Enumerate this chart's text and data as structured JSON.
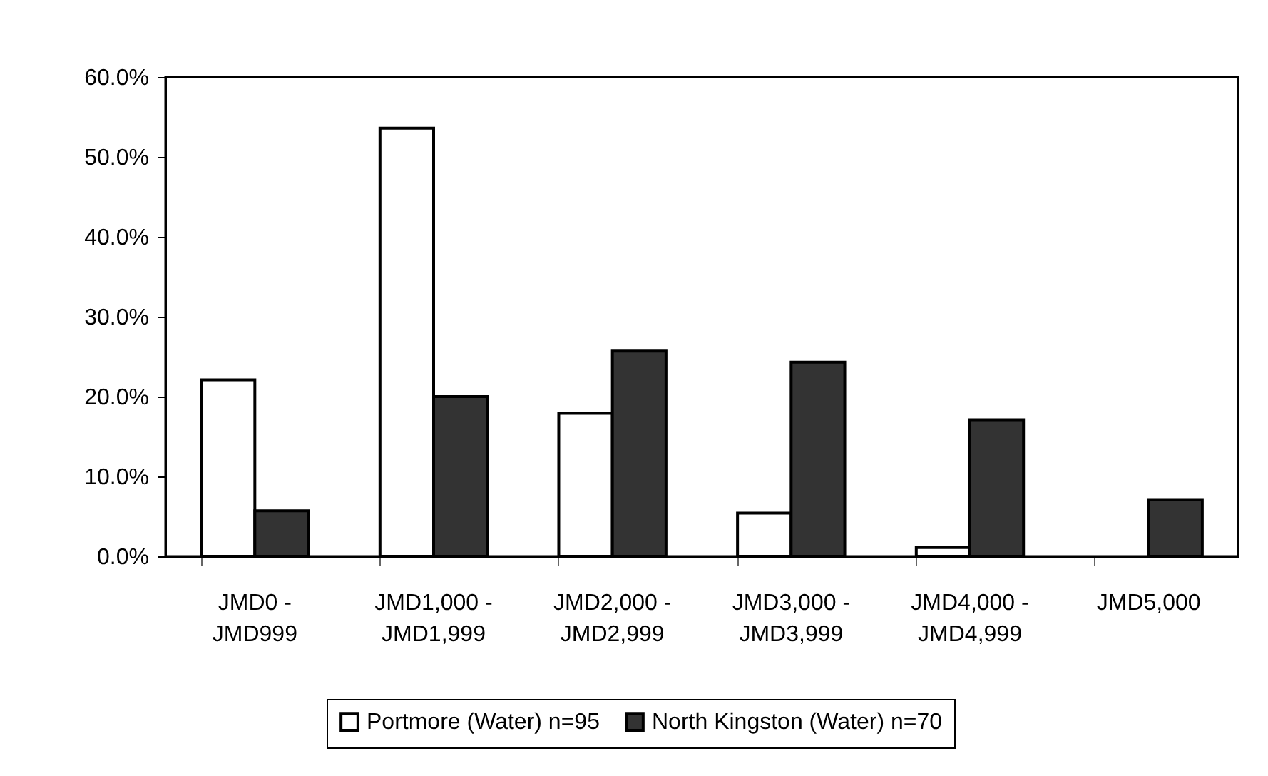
{
  "chart_data": {
    "type": "bar",
    "categories": [
      "JMD0 - JMD999",
      "JMD1,000 - JMD1,999",
      "JMD2,000 - JMD2,999",
      "JMD3,000 - JMD3,999",
      "JMD4,000 - JMD4,999",
      "JMD5,000"
    ],
    "series": [
      {
        "name": "Portmore (Water) n=95",
        "color": "#ffffff",
        "values": [
          22.1,
          53.6,
          17.9,
          5.4,
          1.1,
          null
        ]
      },
      {
        "name": "North Kingston (Water) n=70",
        "color": "#333333",
        "values": [
          5.7,
          20.0,
          25.7,
          24.3,
          17.1,
          7.1
        ]
      }
    ],
    "ylim": [
      0,
      60
    ],
    "yticks": [
      {
        "value": 0,
        "label": "0.0%"
      },
      {
        "value": 10,
        "label": "10.0%"
      },
      {
        "value": 20,
        "label": "20.0%"
      },
      {
        "value": 30,
        "label": "30.0%"
      },
      {
        "value": 40,
        "label": "40.0%"
      },
      {
        "value": 50,
        "label": "50.0%"
      },
      {
        "value": 60,
        "label": "60.0%"
      }
    ],
    "grid": false,
    "legend": "bottom"
  }
}
